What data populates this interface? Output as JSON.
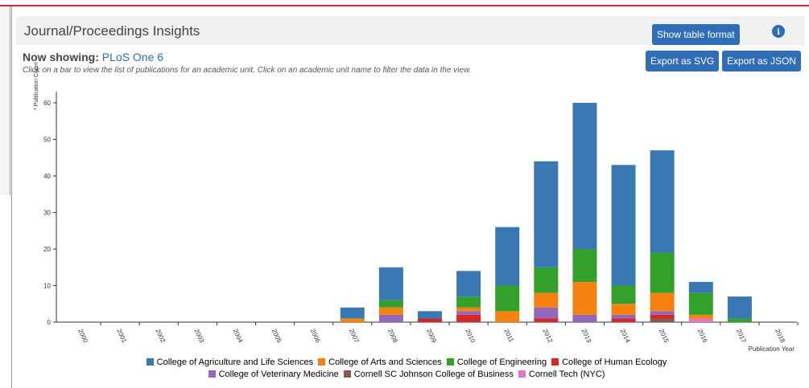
{
  "panel": {
    "title": "Journal/Proceedings Insights",
    "buttons": [
      "Show table format",
      "Export as SVG",
      "Export as JSON"
    ],
    "now_showing_label": "Now showing:",
    "now_showing_value": "PLoS One 6",
    "instructions": "Click on a bar to view the list of publications for an academic unit. Click on an academic unit name to filter the data in the view."
  },
  "chart_data": {
    "type": "stacked_bar",
    "x_label": "Publication Year",
    "y_label": "* Publication Count",
    "categories": [
      "2000",
      "2001",
      "2002",
      "2003",
      "2004",
      "2005",
      "2006",
      "2007",
      "2008",
      "2009",
      "2010",
      "2011",
      "2012",
      "2013",
      "2014",
      "2015",
      "2016",
      "2017",
      "2018"
    ],
    "series": [
      {
        "name": "College of Agriculture and Life Sciences",
        "color": "#3a78b5",
        "values": [
          0,
          0,
          0,
          0,
          0,
          0,
          0,
          3,
          9,
          2,
          7,
          16,
          29,
          40,
          33,
          28,
          3,
          6,
          0
        ]
      },
      {
        "name": "College of Arts and Sciences",
        "color": "#f5820f",
        "values": [
          0,
          0,
          0,
          0,
          0,
          0,
          0,
          1,
          2,
          0,
          1,
          3,
          4,
          9,
          3,
          5,
          1,
          0,
          0
        ]
      },
      {
        "name": "College of Engineering",
        "color": "#33a02c",
        "values": [
          0,
          0,
          0,
          0,
          0,
          0,
          0,
          0,
          2,
          0,
          3,
          7,
          7,
          9,
          5,
          11,
          6,
          1,
          0
        ]
      },
      {
        "name": "College of Human Ecology",
        "color": "#d62728",
        "values": [
          0,
          0,
          0,
          0,
          0,
          0,
          0,
          0,
          0,
          1,
          2,
          0,
          1,
          0,
          1,
          1,
          0,
          0,
          0
        ]
      },
      {
        "name": "College of Veterinary Medicine",
        "color": "#9467bd",
        "values": [
          0,
          0,
          0,
          0,
          0,
          0,
          0,
          0,
          2,
          0,
          1,
          0,
          3,
          2,
          1,
          1,
          0,
          0,
          0
        ]
      },
      {
        "name": "Cornell SC Johnson College of Business",
        "color": "#8c564b",
        "values": [
          0,
          0,
          0,
          0,
          0,
          0,
          0,
          0,
          0,
          0,
          0,
          0,
          0,
          0,
          0,
          1,
          0,
          0,
          0
        ]
      },
      {
        "name": "Cornell Tech (NYC)",
        "color": "#e377c2",
        "values": [
          0,
          0,
          0,
          0,
          0,
          0,
          0,
          0,
          0,
          0,
          0,
          0,
          0,
          0,
          0,
          0,
          1,
          0,
          0
        ]
      }
    ],
    "ylim": [
      0,
      63
    ],
    "yticks": [
      0,
      10,
      20,
      30,
      40,
      50,
      60
    ]
  }
}
